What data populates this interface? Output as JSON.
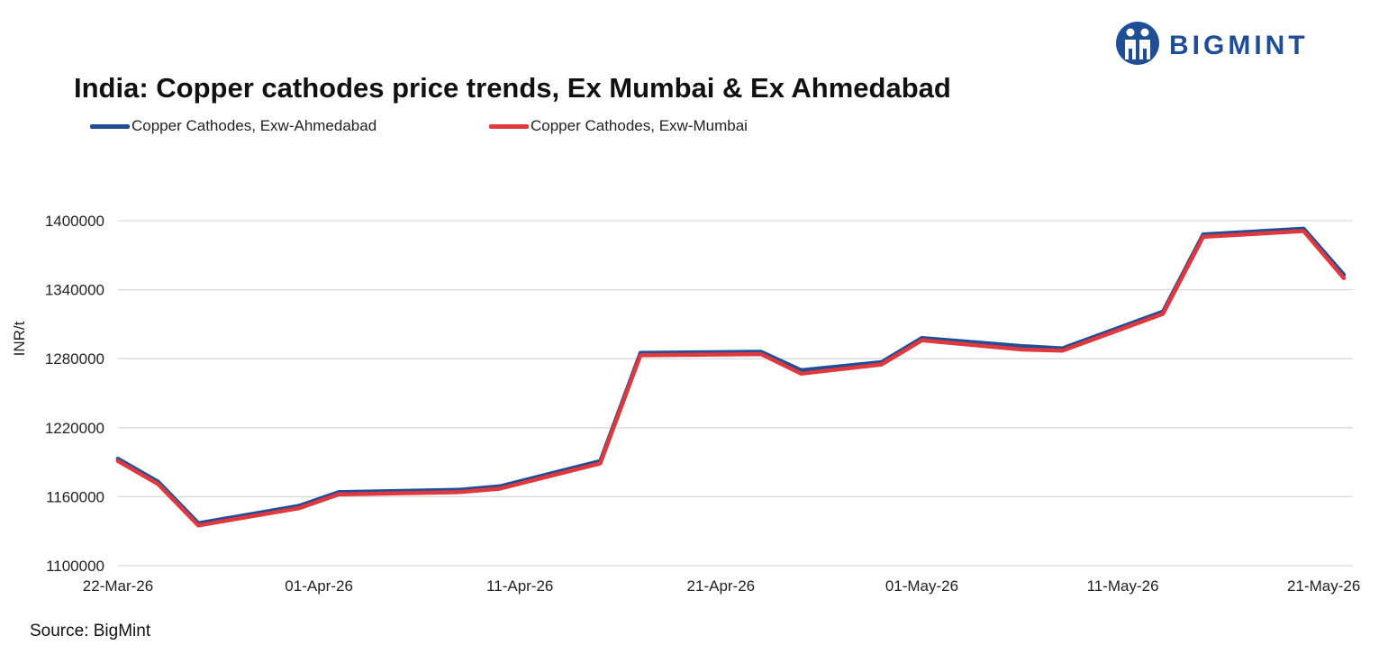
{
  "brand": {
    "name": "BIGMINT"
  },
  "source": "Source: BigMint",
  "colors": {
    "ahmedabad": "#1f4e96",
    "mumbai": "#e0383c",
    "grid": "#d9d9d9",
    "brand": "#1f4e96"
  },
  "chart_data": {
    "type": "line",
    "title": "India: Copper cathodes price trends, Ex Mumbai & Ex Ahmedabad",
    "ylabel": "INR/t",
    "xlabel": "",
    "ylim": [
      1100000,
      1400000
    ],
    "yticks": [
      1100000,
      1160000,
      1220000,
      1280000,
      1340000,
      1400000
    ],
    "x_ticks": [
      "22-Mar-26",
      "01-Apr-26",
      "11-Apr-26",
      "21-Apr-26",
      "01-May-26",
      "11-May-26",
      "21-May-26"
    ],
    "xrange": [
      "22-Mar-26",
      "22-May-26"
    ],
    "legend": "top-left",
    "grid": "horizontal",
    "x": [
      "22-Mar-26",
      "23-Mar-26",
      "24-Mar-26",
      "25-Mar-26",
      "26-Mar-26",
      "27-Mar-26",
      "28-Mar-26",
      "29-Mar-26",
      "30-Mar-26",
      "31-Mar-26",
      "01-Apr-26",
      "02-Apr-26",
      "03-Apr-26",
      "04-Apr-26",
      "05-Apr-26",
      "06-Apr-26",
      "07-Apr-26",
      "08-Apr-26",
      "09-Apr-26",
      "10-Apr-26",
      "11-Apr-26",
      "12-Apr-26",
      "13-Apr-26",
      "14-Apr-26",
      "15-Apr-26",
      "16-Apr-26",
      "17-Apr-26",
      "18-Apr-26",
      "19-Apr-26",
      "20-Apr-26",
      "21-Apr-26",
      "22-Apr-26",
      "23-Apr-26",
      "24-Apr-26",
      "25-Apr-26",
      "26-Apr-26",
      "27-Apr-26",
      "28-Apr-26",
      "29-Apr-26",
      "30-Apr-26",
      "01-May-26",
      "02-May-26",
      "03-May-26",
      "04-May-26",
      "05-May-26",
      "06-May-26",
      "07-May-26",
      "08-May-26",
      "09-May-26",
      "10-May-26",
      "11-May-26",
      "12-May-26",
      "13-May-26",
      "14-May-26",
      "15-May-26",
      "16-May-26",
      "17-May-26",
      "18-May-26",
      "19-May-26",
      "20-May-26",
      "21-May-26",
      "22-May-26"
    ],
    "series": [
      {
        "name": "Copper Cathodes, Exw-Ahmedabad",
        "points": [
          [
            "22-Mar-26",
            1193000
          ],
          [
            "24-Mar-26",
            1173000
          ],
          [
            "26-Mar-26",
            1137000
          ],
          [
            "31-Mar-26",
            1152000
          ],
          [
            "02-Apr-26",
            1164000
          ],
          [
            "08-Apr-26",
            1166000
          ],
          [
            "10-Apr-26",
            1169000
          ],
          [
            "15-Apr-26",
            1191000
          ],
          [
            "17-Apr-26",
            1285000
          ],
          [
            "23-Apr-26",
            1286000
          ],
          [
            "25-Apr-26",
            1270000
          ],
          [
            "29-Apr-26",
            1277000
          ],
          [
            "01-May-26",
            1298000
          ],
          [
            "06-May-26",
            1291000
          ],
          [
            "08-May-26",
            1289000
          ],
          [
            "13-May-26",
            1321000
          ],
          [
            "15-May-26",
            1388000
          ],
          [
            "20-May-26",
            1393000
          ],
          [
            "22-May-26",
            1353000
          ]
        ]
      },
      {
        "name": "Copper Cathodes, Exw-Mumbai",
        "points": [
          [
            "22-Mar-26",
            1191000
          ],
          [
            "24-Mar-26",
            1171000
          ],
          [
            "26-Mar-26",
            1135000
          ],
          [
            "31-Mar-26",
            1150000
          ],
          [
            "02-Apr-26",
            1162000
          ],
          [
            "08-Apr-26",
            1164000
          ],
          [
            "10-Apr-26",
            1167000
          ],
          [
            "15-Apr-26",
            1189000
          ],
          [
            "17-Apr-26",
            1283000
          ],
          [
            "23-Apr-26",
            1284000
          ],
          [
            "25-Apr-26",
            1267000
          ],
          [
            "29-Apr-26",
            1275000
          ],
          [
            "01-May-26",
            1296000
          ],
          [
            "06-May-26",
            1288000
          ],
          [
            "08-May-26",
            1287000
          ],
          [
            "13-May-26",
            1319000
          ],
          [
            "15-May-26",
            1386000
          ],
          [
            "20-May-26",
            1391000
          ],
          [
            "22-May-26",
            1350000
          ]
        ]
      }
    ]
  }
}
